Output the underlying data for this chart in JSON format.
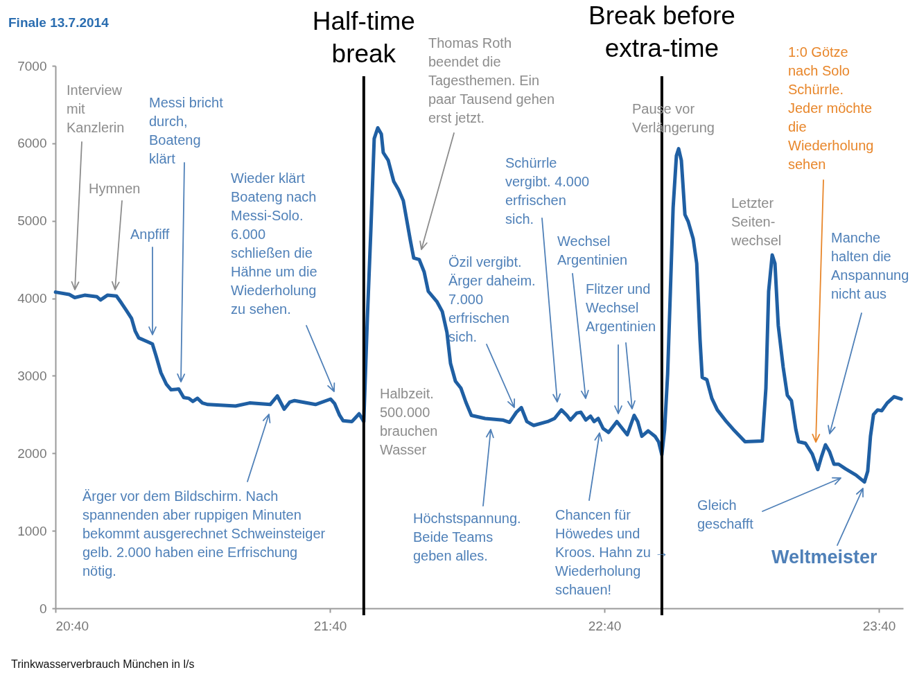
{
  "chart_data": {
    "type": "line",
    "title": "Finale 13.7.2014",
    "x": [
      20.667,
      20.717,
      20.737,
      20.773,
      20.818,
      20.831,
      20.856,
      20.889,
      20.907,
      20.924,
      20.944,
      20.957,
      20.97,
      20.995,
      21.008,
      21.02,
      21.033,
      21.051,
      21.071,
      21.088,
      21.116,
      21.134,
      21.152,
      21.167,
      21.184,
      21.202,
      21.222,
      21.323,
      21.374,
      21.449,
      21.475,
      21.5,
      21.52,
      21.538,
      21.614,
      21.669,
      21.684,
      21.702,
      21.715,
      21.747,
      21.773,
      21.79,
      21.803,
      21.816,
      21.828,
      21.841,
      21.854,
      21.861,
      21.879,
      21.899,
      21.917,
      21.934,
      21.96,
      21.972,
      21.992,
      22.01,
      22.025,
      22.056,
      22.076,
      22.093,
      22.106,
      22.124,
      22.144,
      22.162,
      22.182,
      22.232,
      22.296,
      22.321,
      22.346,
      22.364,
      22.384,
      22.409,
      22.46,
      22.485,
      22.51,
      22.53,
      22.543,
      22.566,
      22.581,
      22.599,
      22.616,
      22.629,
      22.644,
      22.662,
      22.682,
      22.712,
      22.732,
      22.75,
      22.775,
      22.788,
      22.803,
      22.826,
      22.851,
      22.864,
      22.876,
      22.886,
      22.897,
      22.907,
      22.917,
      22.929,
      22.937,
      22.947,
      22.96,
      22.972,
      22.99,
      23.003,
      23.015,
      23.023,
      23.04,
      23.058,
      23.078,
      23.111,
      23.141,
      23.179,
      23.242,
      23.255,
      23.265,
      23.278,
      23.288,
      23.3,
      23.318,
      23.333,
      23.348,
      23.364,
      23.374,
      23.399,
      23.424,
      23.444,
      23.457,
      23.472,
      23.487,
      23.503,
      23.52,
      23.545,
      23.583,
      23.614,
      23.626,
      23.636,
      23.647,
      23.662,
      23.677,
      23.697,
      23.722,
      23.748
    ],
    "series": [
      {
        "color": "#1f5fa3",
        "values": [
          4080,
          4050,
          4010,
          4040,
          4020,
          3980,
          4040,
          4030,
          3940,
          3850,
          3740,
          3580,
          3490,
          3450,
          3430,
          3410,
          3260,
          3040,
          2890,
          2820,
          2830,
          2720,
          2710,
          2670,
          2710,
          2650,
          2630,
          2610,
          2650,
          2630,
          2740,
          2570,
          2660,
          2680,
          2630,
          2700,
          2640,
          2490,
          2420,
          2410,
          2510,
          2410,
          3740,
          4900,
          6060,
          6200,
          6120,
          5880,
          5780,
          5510,
          5400,
          5260,
          4740,
          4520,
          4500,
          4340,
          4090,
          3960,
          3830,
          3560,
          3160,
          2930,
          2840,
          2660,
          2490,
          2450,
          2430,
          2400,
          2530,
          2590,
          2410,
          2360,
          2410,
          2450,
          2560,
          2490,
          2430,
          2520,
          2530,
          2430,
          2480,
          2410,
          2450,
          2320,
          2270,
          2410,
          2320,
          2240,
          2490,
          2410,
          2220,
          2290,
          2220,
          2150,
          1980,
          2310,
          3020,
          4090,
          5170,
          5840,
          5930,
          5780,
          5080,
          4990,
          4770,
          4450,
          3470,
          2980,
          2950,
          2710,
          2560,
          2410,
          2290,
          2150,
          2160,
          2840,
          4090,
          4560,
          4450,
          3650,
          3110,
          2750,
          2680,
          2310,
          2150,
          2130,
          1990,
          1790,
          1950,
          2110,
          2020,
          1860,
          1860,
          1800,
          1720,
          1630,
          1770,
          2220,
          2500,
          2560,
          2550,
          2650,
          2730,
          2700
        ]
      }
    ],
    "xlim": [
      20.6667,
      23.755
    ],
    "xticks": [
      {
        "value": 20.6667,
        "label": "20:40"
      },
      {
        "value": 21.6667,
        "label": "21:40"
      },
      {
        "value": 22.6667,
        "label": "22:40"
      },
      {
        "value": 23.6667,
        "label": "23:40"
      }
    ],
    "ylim": [
      0,
      7000
    ],
    "yticks": [
      0,
      1000,
      2000,
      3000,
      4000,
      5000,
      6000,
      7000
    ],
    "grid": false,
    "ref_lines": [
      {
        "axis": "x",
        "value": 21.79,
        "label": "Half-time break",
        "color": "#000000"
      },
      {
        "axis": "x",
        "value": 22.876,
        "label": "Break before extra-time",
        "color": "#000000"
      }
    ],
    "annotations": [
      "Interview mit Kanzlerin",
      "Hymnen",
      "Anpfiff",
      "Messi bricht durch, Boateng klärt",
      "Wieder klärt Boateng nach Messi-Solo. 6.000 schließen die Hähne um die Wiederholung zu sehen.",
      "Ärger vor dem Bildschirm. Nach spannenden aber ruppigen Minuten bekommt ausgerechnet Schweinsteiger gelb. 2.000 haben eine Erfrischung nötig.",
      "Halbzeit. 500.000 brauchen Wasser",
      "Thomas Roth beendet die Tagesthemen. Ein paar Tausend gehen erst jetzt.",
      "Höchstspannung. Beide Teams geben alles.",
      "Özil vergibt. Ärger daheim. 7.000 erfrischen sich.",
      "Schürrle vergibt. 4.000 erfrischen sich.",
      "Wechsel Argentinien",
      "Flitzer und Wechsel Argentinien",
      "Chancen für Höwedes und Kroos. Hahn zu → Wiederholung schauen!",
      "Pause vor Verlängerung",
      "Letzter Seiten- wechsel",
      "1:0 Götze nach Solo Schürrle. Jeder möchte die Wiederholung sehen",
      "Manche halten die Anspannung nicht aus",
      "Gleich geschafft",
      "Weltmeister",
      "Trinkwasserverbrauch München in l/s"
    ]
  }
}
